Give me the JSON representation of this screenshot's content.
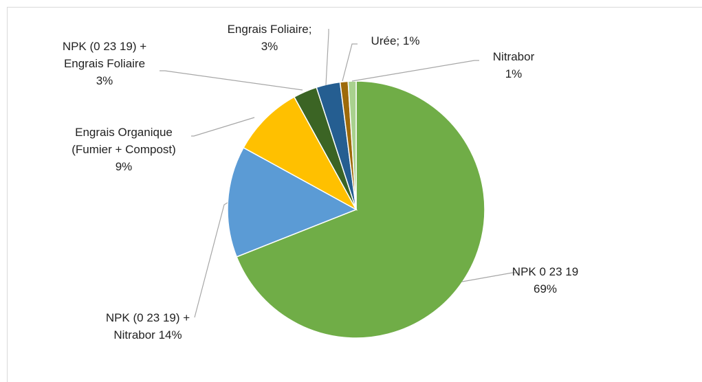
{
  "chart_data": {
    "type": "pie",
    "categories": [
      "NPK 0 23 19",
      "NPK (0 23 19) +\nNitrabor",
      "Engrais Organique\n(Fumier + Compost)",
      "NPK (0 23 19) +\nEngrais Foliaire",
      "Engrais Foliaire;",
      "Urée;",
      "Nitrabor"
    ],
    "values": [
      69,
      14,
      9,
      3,
      3,
      1,
      1
    ],
    "value_labels": [
      "69%",
      "14%",
      "9%",
      "3%",
      "3%",
      "1%",
      "1%"
    ],
    "colors": [
      "#70ad47",
      "#5b9bd5",
      "#ffc000",
      "#3b6424",
      "#255e91",
      "#9e6a0a",
      "#a9d18e"
    ]
  }
}
